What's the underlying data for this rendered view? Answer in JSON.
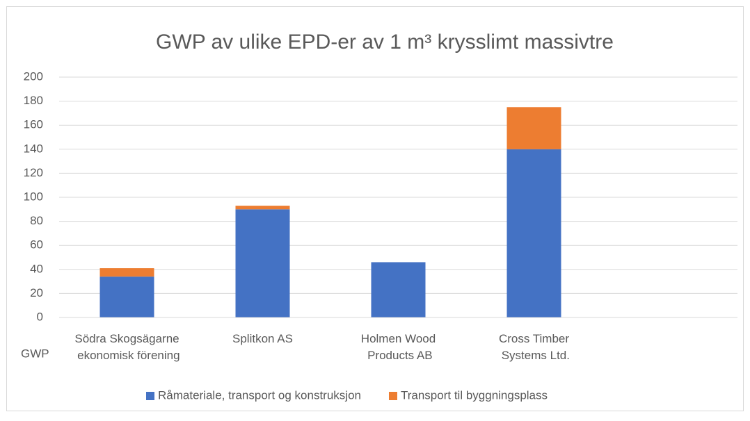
{
  "chart_data": {
    "type": "stacked_bar",
    "title": "GWP av ulike EPD-er av 1 m³ krysslimt massivtre",
    "y_label": "GWP",
    "categories": [
      "Södra Skogsägarne ekonomisk förening",
      "Splitkon AS",
      "Holmen Wood Products AB",
      "Cross Timber Systems Ltd.",
      null
    ],
    "series": [
      {
        "name": "Råmateriale, transport og konstruksjon",
        "color": "#4472c4",
        "values": [
          34,
          90,
          46,
          140,
          null
        ]
      },
      {
        "name": "Transport til byggningsplass",
        "color": "#ed7d31",
        "values": [
          7,
          3,
          0,
          35,
          null
        ]
      }
    ],
    "ylim": [
      0,
      200
    ],
    "yticks": [
      0,
      20,
      40,
      60,
      80,
      100,
      120,
      140,
      160,
      180,
      200
    ],
    "grid": true,
    "legend": "bottom"
  }
}
